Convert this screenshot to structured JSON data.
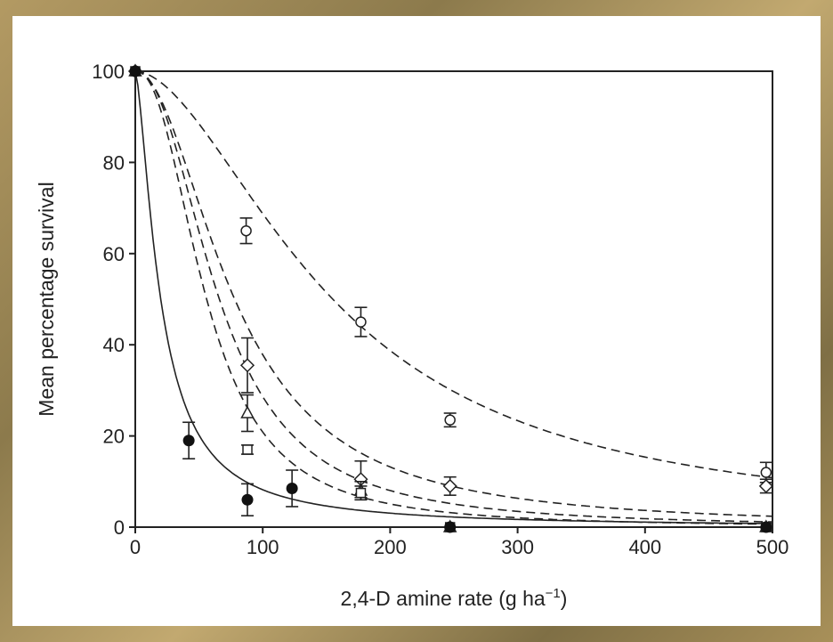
{
  "chart_data": {
    "type": "scatter",
    "xlabel": "2,4-D amine rate (g ha",
    "xlabel_sup": "−1",
    "xlabel_end": ")",
    "ylabel": "Mean percentage survival",
    "xlim": [
      0,
      500
    ],
    "ylim": [
      0,
      100
    ],
    "xticks": [
      0,
      100,
      200,
      300,
      400,
      500
    ],
    "yticks": [
      0,
      20,
      40,
      60,
      80,
      100
    ],
    "grid": false,
    "series": [
      {
        "name": "open-circle",
        "marker": "circle-open",
        "line": "dashed",
        "fit": {
          "ed50": 155,
          "slope": 1.8
        },
        "points": [
          [
            0,
            100,
            0
          ],
          [
            87,
            65,
            2.8
          ],
          [
            177,
            45,
            3.2
          ],
          [
            247,
            23.5,
            1.5
          ],
          [
            495,
            12,
            2.2
          ]
        ]
      },
      {
        "name": "diamond",
        "marker": "diamond",
        "line": "dashed",
        "fit": {
          "ed50": 78,
          "slope": 2.0
        },
        "points": [
          [
            0,
            100,
            0
          ],
          [
            88,
            35.5,
            6
          ],
          [
            177,
            10.5,
            4
          ],
          [
            247,
            9,
            2
          ],
          [
            495,
            9,
            1.5
          ]
        ]
      },
      {
        "name": "triangle",
        "marker": "triangle",
        "line": "dashed",
        "fit": {
          "ed50": 66,
          "slope": 2.2
        },
        "points": [
          [
            0,
            100,
            0
          ],
          [
            88,
            25,
            4
          ],
          [
            177,
            8,
            2
          ],
          [
            247,
            0,
            0
          ],
          [
            495,
            0,
            0
          ]
        ]
      },
      {
        "name": "square",
        "marker": "square",
        "line": "dashed",
        "fit": {
          "ed50": 56,
          "slope": 2.3
        },
        "points": [
          [
            0,
            100,
            0
          ],
          [
            88,
            17,
            1
          ],
          [
            177,
            7.5,
            1.5
          ],
          [
            247,
            0,
            0
          ],
          [
            495,
            0,
            0
          ]
        ]
      },
      {
        "name": "filled-circle",
        "marker": "circle-filled",
        "line": "solid",
        "fit": {
          "ed50": 20,
          "slope": 1.5
        },
        "points": [
          [
            0,
            100,
            0
          ],
          [
            42,
            19,
            4
          ],
          [
            88,
            6,
            3.5
          ],
          [
            123,
            8.5,
            4
          ],
          [
            247,
            0,
            0
          ],
          [
            495,
            0,
            0
          ]
        ]
      }
    ]
  }
}
